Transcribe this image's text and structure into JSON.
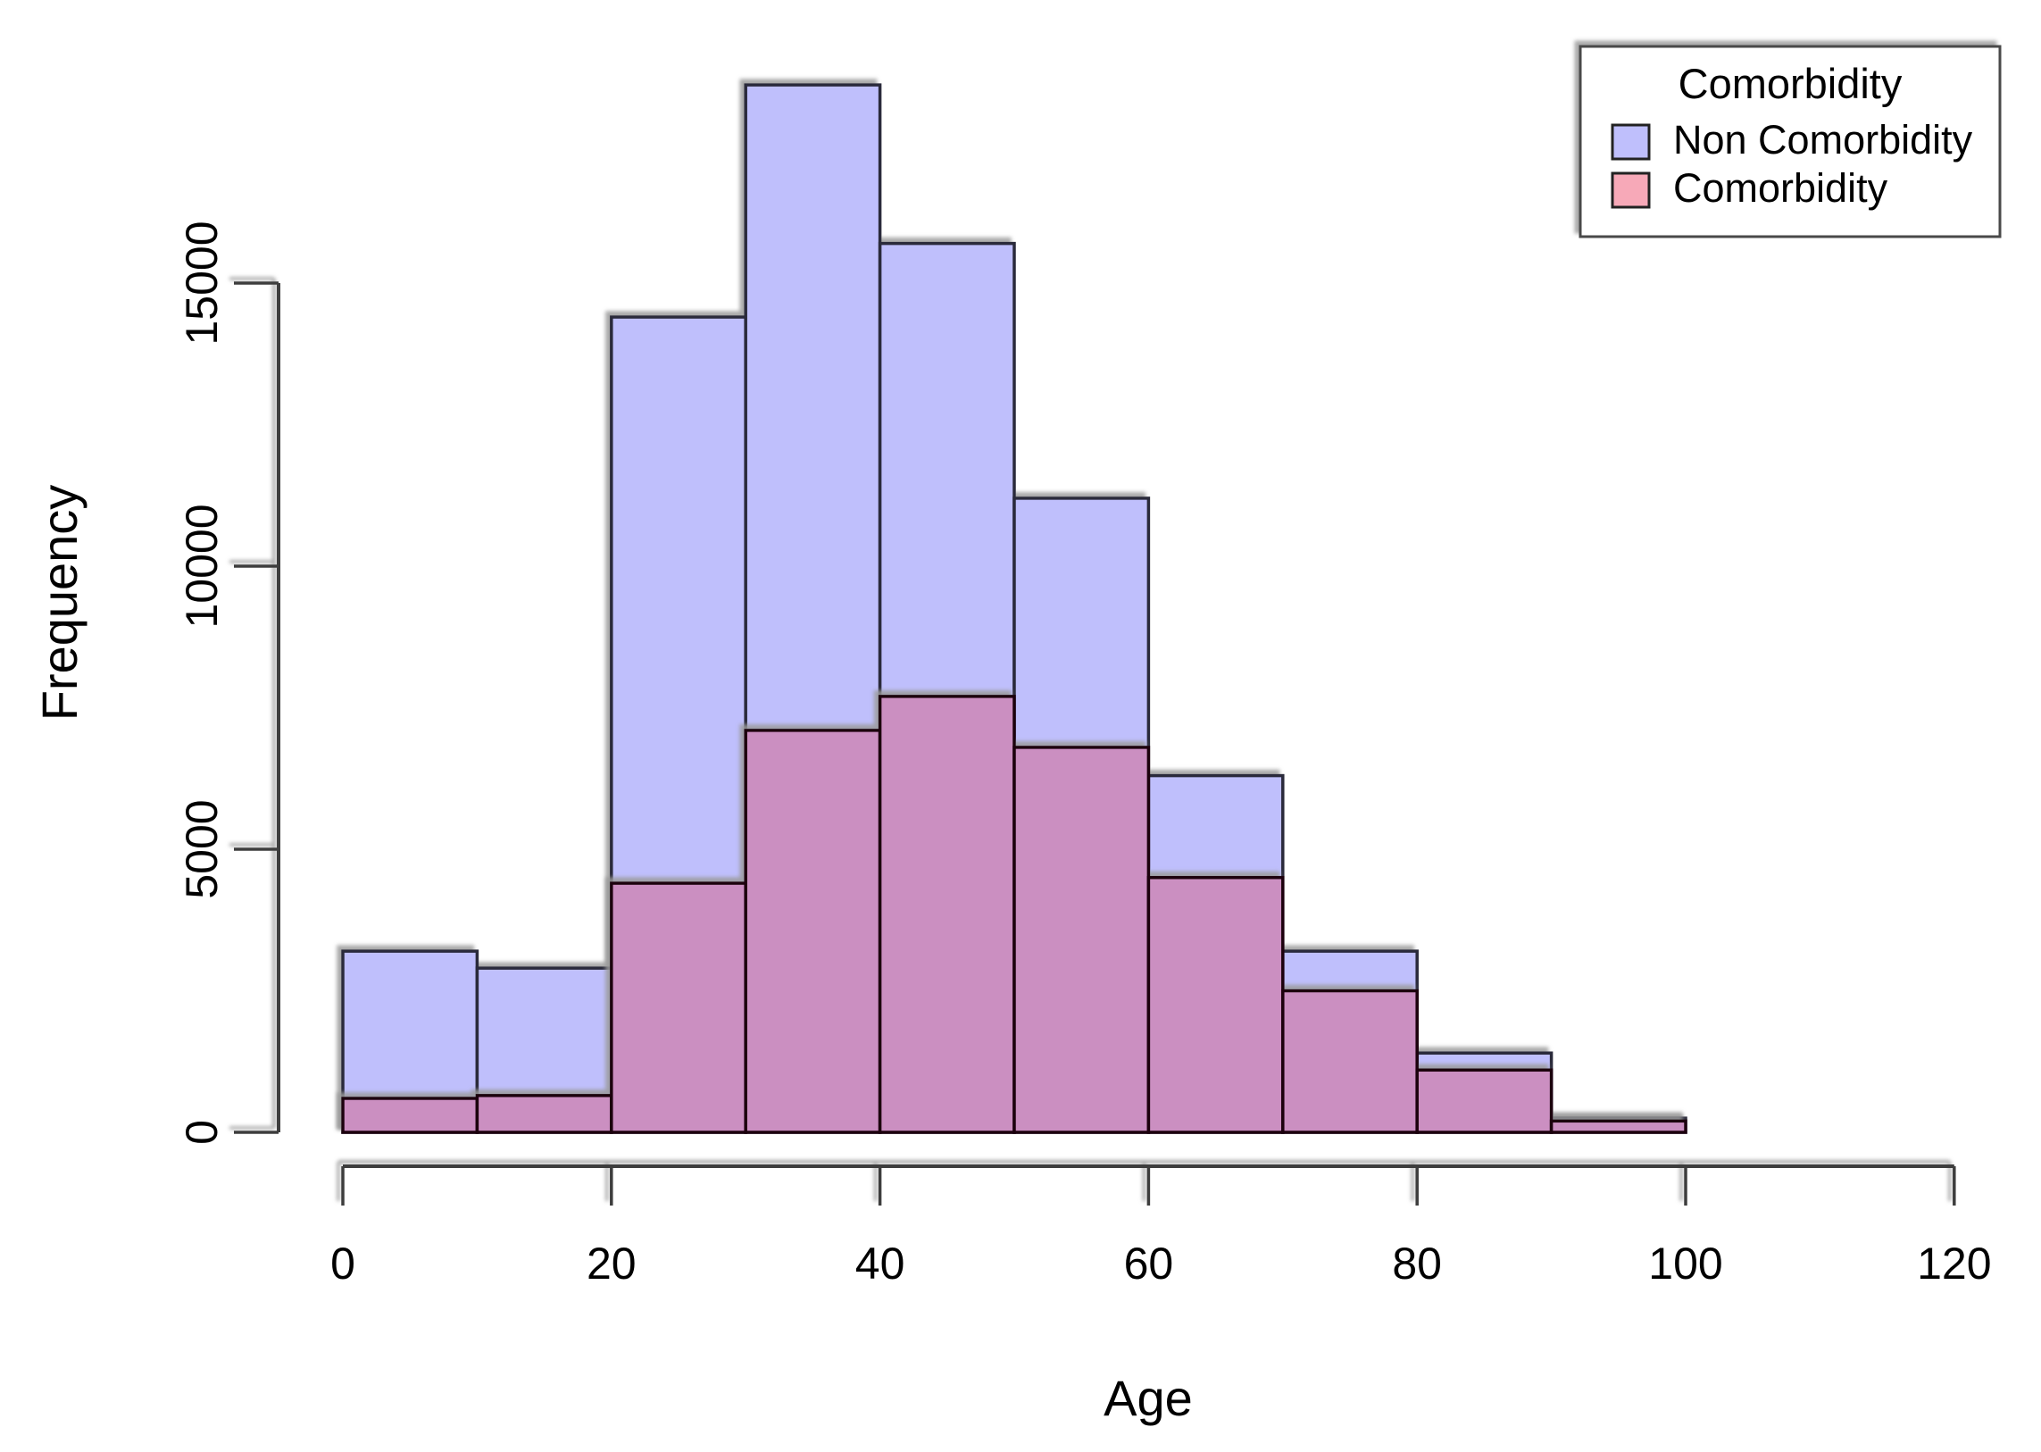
{
  "chart_data": {
    "type": "histogram",
    "title": "",
    "xlabel": "Age",
    "ylabel": "Frequency",
    "xlim": [
      0,
      120
    ],
    "ylim": [
      0,
      18600
    ],
    "x_ticks": [
      0,
      20,
      40,
      60,
      80,
      100,
      120
    ],
    "y_ticks": [
      0,
      5000,
      10000,
      15000
    ],
    "bin_width": 10,
    "bin_starts": [
      0,
      10,
      20,
      30,
      40,
      50,
      60,
      70,
      80,
      90
    ],
    "series": [
      {
        "name": "Non Comorbidity",
        "values": [
          3200,
          2900,
          14400,
          18500,
          15700,
          11200,
          6300,
          3200,
          1400,
          250
        ],
        "fill": "#bfbffc",
        "border": "#2b2b3a"
      },
      {
        "name": "Comorbidity",
        "values": [
          600,
          650,
          4400,
          7100,
          7700,
          6800,
          4500,
          2500,
          1100,
          200
        ],
        "fill": "#f7a9b8",
        "overlap_fill": "#cb8fc1",
        "border": "#1c060e"
      }
    ],
    "legend": {
      "title": "Comorbidity",
      "items": [
        {
          "label": "Non Comorbidity",
          "color": "#bfbffc"
        },
        {
          "label": "Comorbidity",
          "color": "#f7a9b8"
        }
      ]
    },
    "colors": {
      "axis": "#3c3c3c",
      "text": "#000000",
      "background": "#ffffff",
      "shadow": "#9a9a9a"
    },
    "legend_position": "top-right",
    "grid": false
  }
}
